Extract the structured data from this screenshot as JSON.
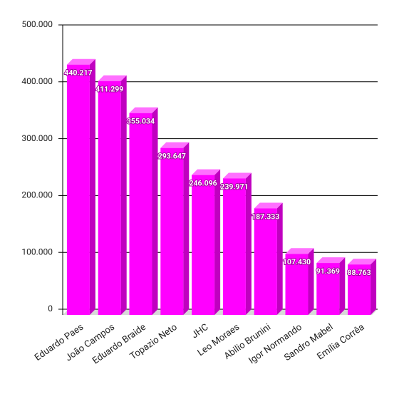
{
  "chart_data": {
    "type": "bar3d",
    "categories": [
      "Eduardo Paes",
      "João Campos",
      "Eduardo Braide",
      "Topazio Neto",
      "JHC",
      "Leo Moraes",
      "Abilio Brunini",
      "Igor Normando",
      "Sandro Mabel",
      "Emília Corrêa"
    ],
    "values": [
      440217,
      411299,
      355034,
      293647,
      246096,
      239971,
      187333,
      107430,
      91369,
      88763
    ],
    "value_labels": [
      "440.217",
      "411.299",
      "355.034",
      "293.647",
      "246.096",
      "239.971",
      "187.333",
      "107.430",
      "91.369",
      "88.763"
    ],
    "color": "#ff00ff",
    "ylim": [
      0,
      500000
    ],
    "yticks": [
      {
        "value": 0,
        "label": "0"
      },
      {
        "value": 100000,
        "label": "100.000"
      },
      {
        "value": 200000,
        "label": "200.000"
      },
      {
        "value": 300000,
        "label": "300.000"
      },
      {
        "value": 400000,
        "label": "400.000"
      },
      {
        "value": 500000,
        "label": "500.000"
      }
    ],
    "grid": true
  }
}
